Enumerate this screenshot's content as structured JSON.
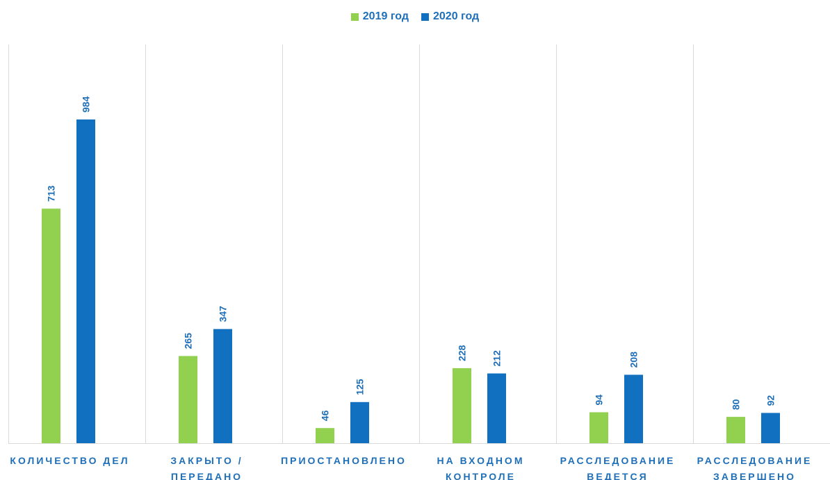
{
  "chart_data": {
    "type": "bar",
    "categories": [
      [
        "КОЛИЧЕСТВО ДЕЛ"
      ],
      [
        "ЗАКРЫТО /",
        "ПЕРЕДАНО"
      ],
      [
        "ПРИОСТАНОВЛЕНО"
      ],
      [
        "НА ВХОДНОМ",
        "КОНТРОЛЕ"
      ],
      [
        "РАССЛЕДОВАНИЕ",
        "ВЕДЕТСЯ"
      ],
      [
        "РАССЛЕДОВАНИЕ",
        "ЗАВЕРШЕНО"
      ]
    ],
    "series": [
      {
        "name": "2019 год",
        "color": "#92d050",
        "values": [
          713,
          265,
          46,
          228,
          94,
          80
        ]
      },
      {
        "name": "2020 год",
        "color": "#1170c0",
        "values": [
          984,
          347,
          125,
          212,
          208,
          92
        ]
      }
    ],
    "ylim": [
      0,
      1000
    ],
    "legend_position": "top-center",
    "label_color": "#1f6fb8",
    "gridlines": "vertical category separators"
  }
}
